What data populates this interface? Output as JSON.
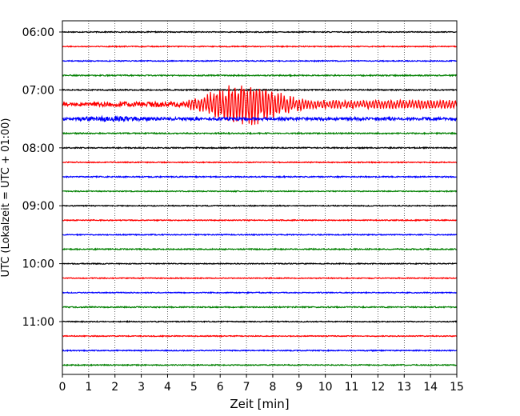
{
  "chart_data": {
    "type": "line",
    "xlabel": "Zeit  [min]",
    "ylabel": "UTC (Lokalzeit = UTC + 01:00)",
    "xlim": [
      0,
      15
    ],
    "x_ticks": [
      "0",
      "1",
      "2",
      "3",
      "4",
      "5",
      "6",
      "7",
      "8",
      "9",
      "10",
      "11",
      "12",
      "13",
      "14",
      "15"
    ],
    "y_tick_labels": [
      "06:00",
      "07:00",
      "08:00",
      "09:00",
      "10:00",
      "11:00"
    ],
    "grid": "vertical dotted",
    "row_duration_min": 15,
    "trace_colors": [
      "#000000",
      "#ff0000",
      "#0000ff",
      "#008000"
    ],
    "traces": [
      {
        "start": "06:00",
        "color": "#000000",
        "amplitude": 0.1
      },
      {
        "start": "06:15",
        "color": "#ff0000",
        "amplitude": 0.1
      },
      {
        "start": "06:30",
        "color": "#0000ff",
        "amplitude": 0.1
      },
      {
        "start": "06:45",
        "color": "#008000",
        "amplitude": 0.12
      },
      {
        "start": "07:00",
        "color": "#000000",
        "amplitude": 0.12
      },
      {
        "start": "07:15",
        "color": "#ff0000",
        "amplitude": 0.35,
        "event": {
          "onset_min": 1.2,
          "peak_start_min": 4.8,
          "peak_min": 6.8,
          "peak_amplitude": 3.0,
          "coda_end_min": 15
        }
      },
      {
        "start": "07:30",
        "color": "#0000ff",
        "amplitude": 0.3,
        "event": {
          "onset_min": 0.0,
          "peak_min": 2.0,
          "peak_amplitude": 0.5,
          "coda_end_min": 8
        }
      },
      {
        "start": "07:45",
        "color": "#008000",
        "amplitude": 0.12
      },
      {
        "start": "08:00",
        "color": "#000000",
        "amplitude": 0.12
      },
      {
        "start": "08:15",
        "color": "#ff0000",
        "amplitude": 0.1
      },
      {
        "start": "08:30",
        "color": "#0000ff",
        "amplitude": 0.12
      },
      {
        "start": "08:45",
        "color": "#008000",
        "amplitude": 0.1
      },
      {
        "start": "09:00",
        "color": "#000000",
        "amplitude": 0.1
      },
      {
        "start": "09:15",
        "color": "#ff0000",
        "amplitude": 0.1
      },
      {
        "start": "09:30",
        "color": "#0000ff",
        "amplitude": 0.1
      },
      {
        "start": "09:45",
        "color": "#008000",
        "amplitude": 0.12
      },
      {
        "start": "10:00",
        "color": "#000000",
        "amplitude": 0.1
      },
      {
        "start": "10:15",
        "color": "#ff0000",
        "amplitude": 0.1
      },
      {
        "start": "10:30",
        "color": "#0000ff",
        "amplitude": 0.1
      },
      {
        "start": "10:45",
        "color": "#008000",
        "amplitude": 0.12
      },
      {
        "start": "11:00",
        "color": "#000000",
        "amplitude": 0.1
      },
      {
        "start": "11:15",
        "color": "#ff0000",
        "amplitude": 0.1
      },
      {
        "start": "11:30",
        "color": "#0000ff",
        "amplitude": 0.1
      },
      {
        "start": "11:45",
        "color": "#008000",
        "amplitude": 0.1
      }
    ]
  }
}
